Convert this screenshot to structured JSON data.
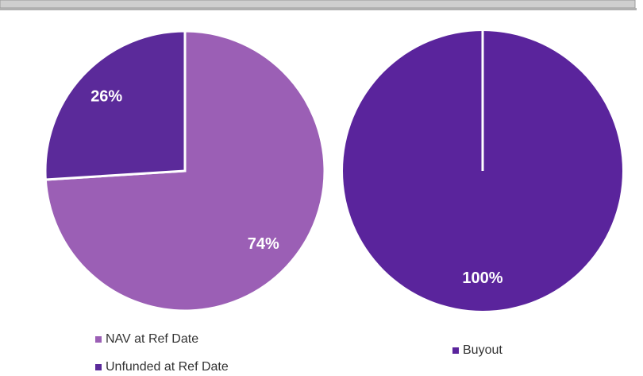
{
  "chart_data": [
    {
      "type": "pie",
      "categories": [
        "NAV at Ref Date",
        "Unfunded at Ref Date"
      ],
      "values": [
        74,
        26
      ],
      "value_labels": [
        "74%",
        "26%"
      ],
      "colors": [
        "#9b5fb5",
        "#5b2a9a"
      ]
    },
    {
      "type": "pie",
      "categories": [
        "Buyout"
      ],
      "values": [
        100
      ],
      "value_labels": [
        "100%"
      ],
      "colors": [
        "#5a249c"
      ]
    }
  ]
}
